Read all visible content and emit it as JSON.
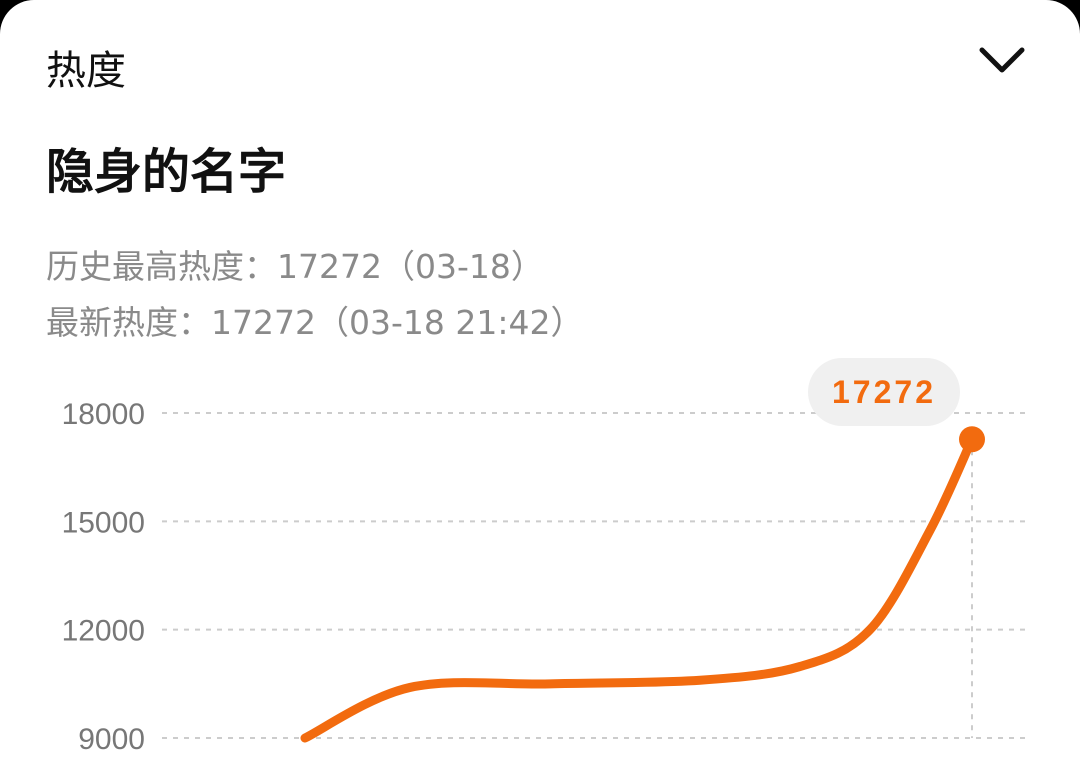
{
  "header": {
    "title": "热度",
    "collapse_icon": "chevron-down-icon"
  },
  "item": {
    "name": "隐身的名字"
  },
  "stats": {
    "history_high": "历史最高热度：17272（03-18）",
    "latest": "最新热度：17272（03-18 21:42）"
  },
  "colors": {
    "line": "#F26B0F",
    "tooltip_bg": "#F0F0F0",
    "grid": "#CCCCCC"
  },
  "chart_data": {
    "type": "line",
    "ylim": [
      9000,
      18000
    ],
    "yticks": [
      9000,
      12000,
      15000,
      18000
    ],
    "ytick_labels": [
      "9000",
      "12000",
      "15000",
      "18000"
    ],
    "grid": "horizontal dashed",
    "values": [
      9000,
      10400,
      10500,
      10600,
      10980,
      12000,
      14750,
      17272
    ],
    "highlight": {
      "value": 17272,
      "label": "17272"
    }
  }
}
